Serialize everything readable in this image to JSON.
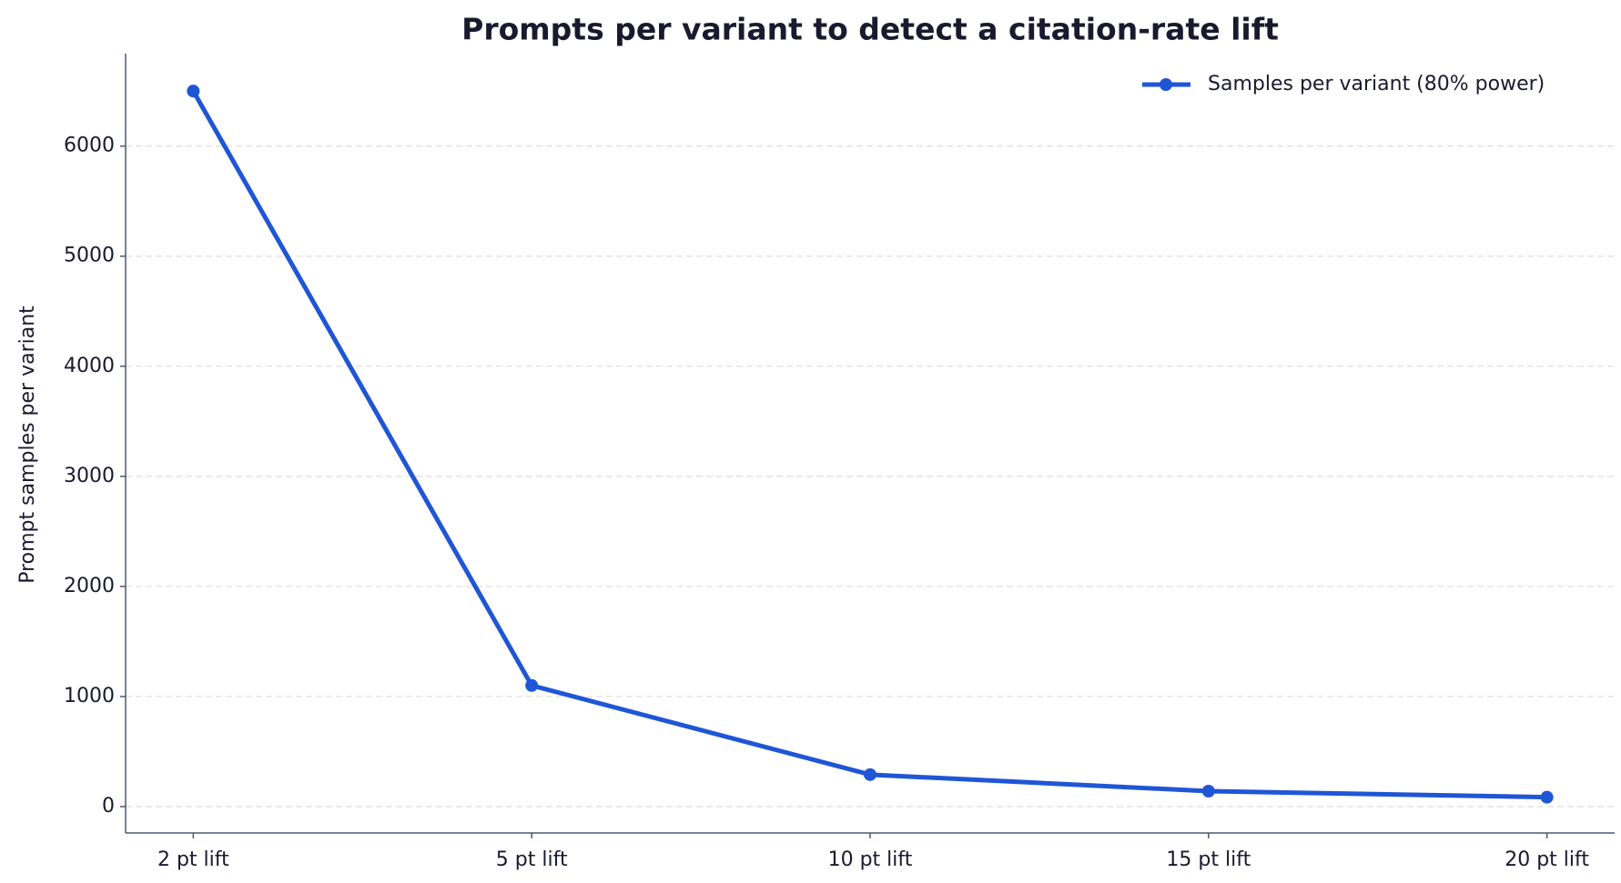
{
  "chart_data": {
    "type": "line",
    "title": "Prompts per variant to detect a citation-rate lift",
    "y_label": "Prompt samples per variant",
    "categories": [
      "2 pt lift",
      "5 pt lift",
      "10 pt lift",
      "15 pt lift",
      "20 pt lift"
    ],
    "series": [
      {
        "name": "Samples per variant (80% power)",
        "color": "#1f56d6",
        "values": [
          6500,
          1100,
          290,
          140,
          85
        ]
      }
    ],
    "ylim": [
      -240,
      6840
    ],
    "yticks": [
      0,
      1000,
      2000,
      3000,
      4000,
      5000,
      6000
    ],
    "grid": true,
    "legend": "upper right"
  }
}
